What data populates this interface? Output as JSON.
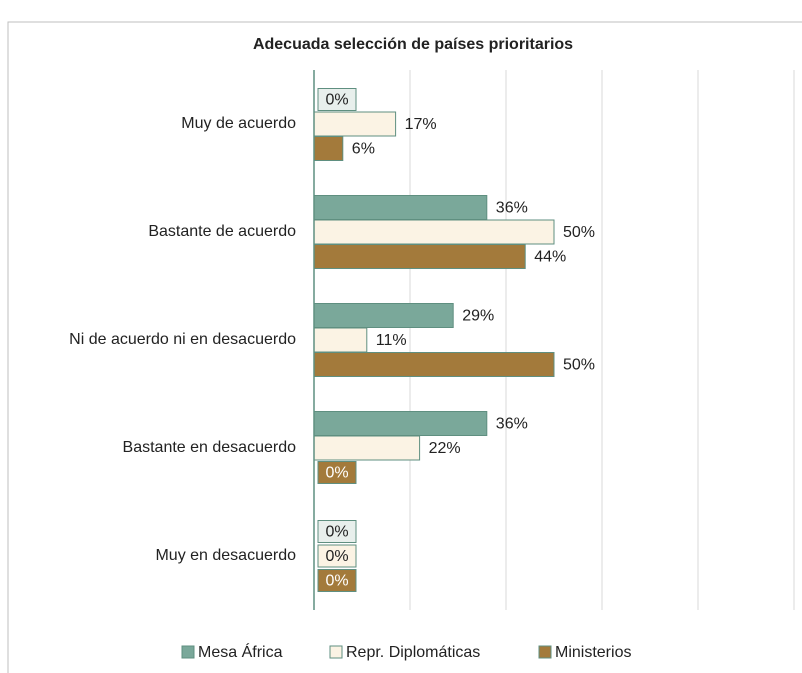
{
  "chart_data": {
    "type": "bar",
    "orientation": "horizontal",
    "title": "Adecuada selección de países prioritarios",
    "categories": [
      "Muy de acuerdo",
      "Bastante de acuerdo",
      "Ni de acuerdo ni en desacuerdo",
      "Bastante en desacuerdo",
      "Muy en desacuerdo"
    ],
    "series": [
      {
        "name": "Mesa África",
        "color": "#7aa89a",
        "values": [
          0,
          36,
          29,
          36,
          0
        ],
        "value_labels": [
          "0%",
          "36%",
          "29%",
          "36%",
          "0%"
        ]
      },
      {
        "name": "Repr. Diplomáticas",
        "color": "#fbf3e4",
        "values": [
          17,
          50,
          11,
          22,
          0
        ],
        "value_labels": [
          "17%",
          "50%",
          "11%",
          "22%",
          "0%"
        ]
      },
      {
        "name": "Ministerios",
        "color": "#a37a3b",
        "values": [
          6,
          44,
          50,
          0,
          0
        ],
        "value_labels": [
          "6%",
          "44%",
          "50%",
          "0%",
          "0%"
        ]
      }
    ],
    "xlim": [
      0,
      100
    ],
    "xticks": [
      0,
      20,
      40,
      60,
      80,
      100
    ],
    "grid": true,
    "legend": "bottom"
  }
}
